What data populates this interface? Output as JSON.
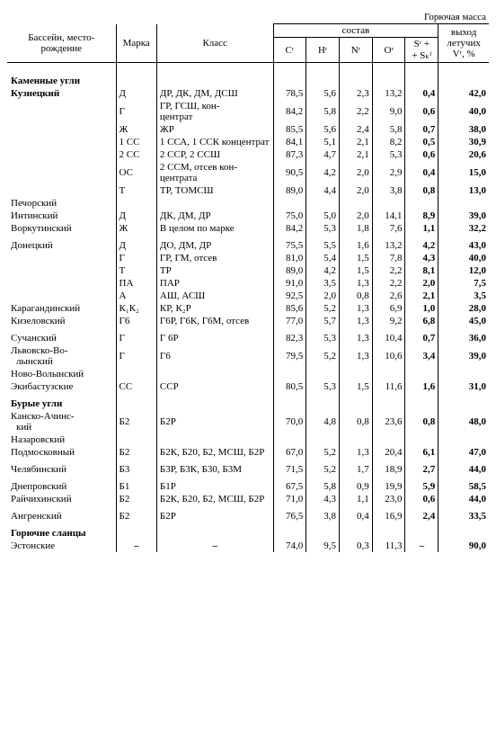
{
  "top_label": "Горючая масса",
  "headers": {
    "basin": "Бассейн, место-\nрождение",
    "mark": "Марка",
    "class": "Класс",
    "sostav": "состав",
    "c": "Cʳ",
    "h": "Hʳ",
    "n": "Nʳ",
    "o": "Oʳ",
    "s": "Sʳ +\n+ Sₖᶠ",
    "v": "выход\nлетучих\nVʳ, %"
  },
  "sections": [
    {
      "title": "Каменные угли",
      "rows": [
        {
          "name": "Кузнецкий",
          "bold": true,
          "mark": "Д",
          "class": "ДР, ДК, ДМ, ДСШ",
          "c": "78,5",
          "h": "5,6",
          "n": "2,3",
          "o": "13,2",
          "s": "0,4",
          "v": "42,0"
        },
        {
          "name": "",
          "mark": "Г",
          "class": "ГР, ГСШ, кон-\nцентрат",
          "c": "84,2",
          "h": "5,8",
          "n": "2,2",
          "o": "9,0",
          "s": "0,6",
          "v": "40,0"
        },
        {
          "name": "",
          "mark": "Ж",
          "class": "ЖР",
          "c": "85,5",
          "h": "5,6",
          "n": "2,4",
          "o": "5,8",
          "s": "0,7",
          "v": "38,0"
        },
        {
          "name": "",
          "mark": "1 СС",
          "class": "1 ССА, 1 ССК концентрат",
          "c": "84,1",
          "h": "5,1",
          "n": "2,1",
          "o": "8,2",
          "s": "0,5",
          "v": "30,9"
        },
        {
          "name": "",
          "mark": "2 СС",
          "class": "2 ССР, 2 ССШ",
          "c": "87,3",
          "h": "4,7",
          "n": "2,1",
          "o": "5,3",
          "s": "0,6",
          "v": "20,6"
        },
        {
          "name": "",
          "mark": "ОС",
          "class": "2 ССМ, отсев кон-\nцентрата",
          "c": "90,5",
          "h": "4,2",
          "n": "2,0",
          "o": "2,9",
          "s": "0,4",
          "v": "15,0"
        },
        {
          "name": "",
          "mark": "Т",
          "class": "ТР, ТОМСШ",
          "c": "89,0",
          "h": "4,4",
          "n": "2,0",
          "o": "3,8",
          "s": "0,8",
          "v": "13,0"
        },
        {
          "name": "Печорский",
          "mark": "",
          "class": "",
          "c": "",
          "h": "",
          "n": "",
          "o": "",
          "s": "",
          "v": ""
        },
        {
          "name": "Интинский",
          "mark": "Д",
          "class": "ДК, ДМ, ДР",
          "c": "75,0",
          "h": "5,0",
          "n": "2,0",
          "o": "14,1",
          "s": "8,9",
          "v": "39,0"
        },
        {
          "name": "Воркутинский",
          "mark": "Ж",
          "class": "В целом по марке",
          "c": "84,2",
          "h": "5,3",
          "n": "1,8",
          "o": "7,6",
          "s": "1,1",
          "v": "32,2"
        },
        {
          "name": "Донецкий",
          "pad": true,
          "mark": "Д",
          "class": "ДО, ДМ, ДР",
          "c": "75,5",
          "h": "5,5",
          "n": "1,6",
          "o": "13,2",
          "s": "4,2",
          "v": "43,0"
        },
        {
          "name": "",
          "mark": "Г",
          "class": "ГР, ГМ, отсев",
          "c": "81,0",
          "h": "5,4",
          "n": "1,5",
          "o": "7,8",
          "s": "4,3",
          "v": "40,0"
        },
        {
          "name": "",
          "mark": "Т",
          "class": "ТР",
          "c": "89,0",
          "h": "4,2",
          "n": "1,5",
          "o": "2,2",
          "s": "8,1",
          "v": "12,0"
        },
        {
          "name": "",
          "mark": "ПА",
          "class": "ПАР",
          "c": "91,0",
          "h": "3,5",
          "n": "1,3",
          "o": "2,2",
          "s": "2,0",
          "v": "7,5"
        },
        {
          "name": "",
          "mark": "А",
          "class": "АШ, АСШ",
          "c": "92,5",
          "h": "2,0",
          "n": "0,8",
          "o": "2,6",
          "s": "2,1",
          "v": "3,5"
        },
        {
          "name": "Карагандинский",
          "mark": "К₁К₂",
          "class": "КР, К₂Р",
          "c": "85,6",
          "h": "5,2",
          "n": "1,3",
          "o": "6,9",
          "s": "1,0",
          "v": "28,0"
        },
        {
          "name": "Кизеловский",
          "mark": "Г6",
          "class": "Г6Р, Г6К, Г6М, отсев",
          "c": "77,0",
          "h": "5,7",
          "n": "1,3",
          "o": "9,2",
          "s": "6,8",
          "v": "45,0"
        },
        {
          "name": "Сучанский",
          "pad": true,
          "mark": "Г",
          "class": "Г 6Р",
          "c": "82,3",
          "h": "5,3",
          "n": "1,3",
          "o": "10,4",
          "s": "0,7",
          "v": "36,0"
        },
        {
          "name": "Львовско-Во-\nлынский",
          "mark": "Г",
          "class": "Г6",
          "c": "79,5",
          "h": "5,2",
          "n": "1,3",
          "o": "10,6",
          "s": "3,4",
          "v": "39,0"
        },
        {
          "name": "Ново-Волынский",
          "mark": "",
          "class": "",
          "c": "",
          "h": "",
          "n": "",
          "o": "",
          "s": "",
          "v": ""
        },
        {
          "name": "Экибастузские",
          "mark": "СС",
          "class": "ССР",
          "c": "80,5",
          "h": "5,3",
          "n": "1,5",
          "o": "11,6",
          "s": "1,6",
          "v": "31,0"
        }
      ]
    },
    {
      "title": "Бурые угли",
      "rows": [
        {
          "name": "Канско-Ачинс-\nкий",
          "mark": "Б2",
          "class": "Б2Р",
          "c": "70,0",
          "h": "4,8",
          "n": "0,8",
          "o": "23,6",
          "s": "0,8",
          "v": "48,0"
        },
        {
          "name": "Назаровский",
          "mark": "",
          "class": "",
          "c": "",
          "h": "",
          "n": "",
          "o": "",
          "s": "",
          "v": ""
        },
        {
          "name": "Подмосковный",
          "mark": "Б2",
          "class": "Б2К, Б20, Б2, МСШ, Б2Р",
          "c": "67,0",
          "h": "5,2",
          "n": "1,3",
          "o": "20,4",
          "s": "6,1",
          "v": "47,0"
        },
        {
          "name": "Челябинский",
          "pad": true,
          "mark": "Б3",
          "class": "Б3Р, Б3К, Б30, Б3М",
          "c": "71,5",
          "h": "5,2",
          "n": "1,7",
          "o": "18,9",
          "s": "2,7",
          "v": "44,0"
        },
        {
          "name": "Днепровский",
          "pad": true,
          "mark": "Б1",
          "class": "Б1Р",
          "c": "67,5",
          "h": "5,8",
          "n": "0,9",
          "o": "19,9",
          "s": "5,9",
          "v": "58,5"
        },
        {
          "name": "Райчихинский",
          "mark": "Б2",
          "class": "Б2К, Б20, Б2, МСШ, Б2Р",
          "c": "71,0",
          "h": "4,3",
          "n": "1,1",
          "o": "23,0",
          "s": "0,6",
          "v": "44,0"
        },
        {
          "name": "Ангренский",
          "pad": true,
          "mark": "Б2",
          "class": "Б2Р",
          "c": "76,5",
          "h": "3,8",
          "n": "0,4",
          "o": "16,9",
          "s": "2,4",
          "v": "33,5"
        }
      ]
    },
    {
      "title": "Горючие сланцы",
      "rows": [
        {
          "name": "Эстонские",
          "mark": "–",
          "markcenter": true,
          "class": "–",
          "classcenter": true,
          "c": "74,0",
          "h": "9,5",
          "n": "0,3",
          "o": "11,3",
          "s": "–",
          "v": "90,0"
        }
      ]
    }
  ]
}
